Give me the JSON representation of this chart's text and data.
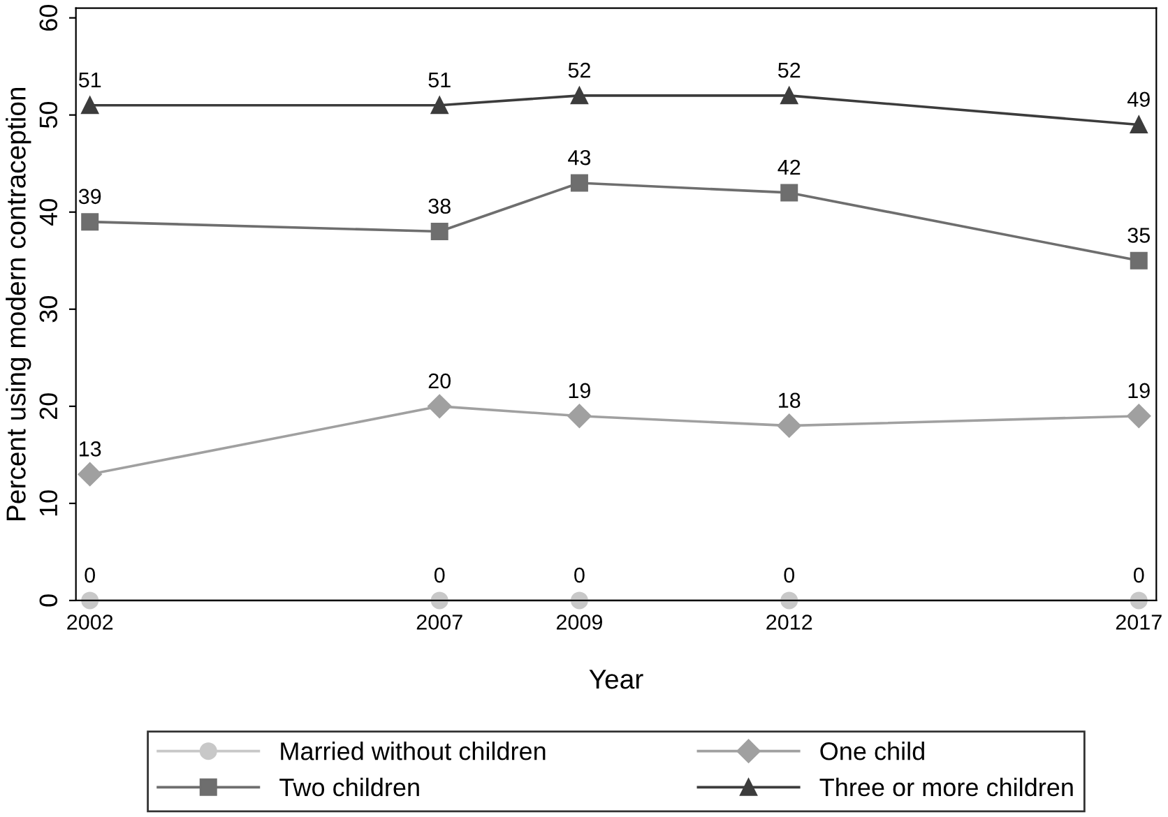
{
  "chart_data": {
    "type": "line",
    "xlabel": "Year",
    "ylabel": "Percent using modern contraception",
    "x": [
      2002,
      2007,
      2009,
      2012,
      2017
    ],
    "series": [
      {
        "name": "Married without children",
        "color": "#c8c8c8",
        "marker": "circle",
        "values": [
          0,
          0,
          0,
          0,
          0
        ]
      },
      {
        "name": "One child",
        "color": "#a0a0a0",
        "marker": "diamond",
        "values": [
          13,
          20,
          19,
          18,
          19
        ]
      },
      {
        "name": "Two children",
        "color": "#6e6e6e",
        "marker": "square",
        "values": [
          39,
          38,
          43,
          42,
          35
        ]
      },
      {
        "name": "Three or more children",
        "color": "#3c3c3c",
        "marker": "triangle",
        "values": [
          51,
          51,
          52,
          52,
          49
        ]
      }
    ],
    "xlim": [
      2001.8,
      2017.25
    ],
    "xticks": [
      2002,
      2007,
      2009,
      2012,
      2017
    ],
    "ylim": [
      0,
      61
    ],
    "yticks": [
      0,
      10,
      20,
      30,
      40,
      50,
      60
    ],
    "data_labels": true,
    "grid": false,
    "legend": "bottom",
    "line_style": "solid"
  }
}
